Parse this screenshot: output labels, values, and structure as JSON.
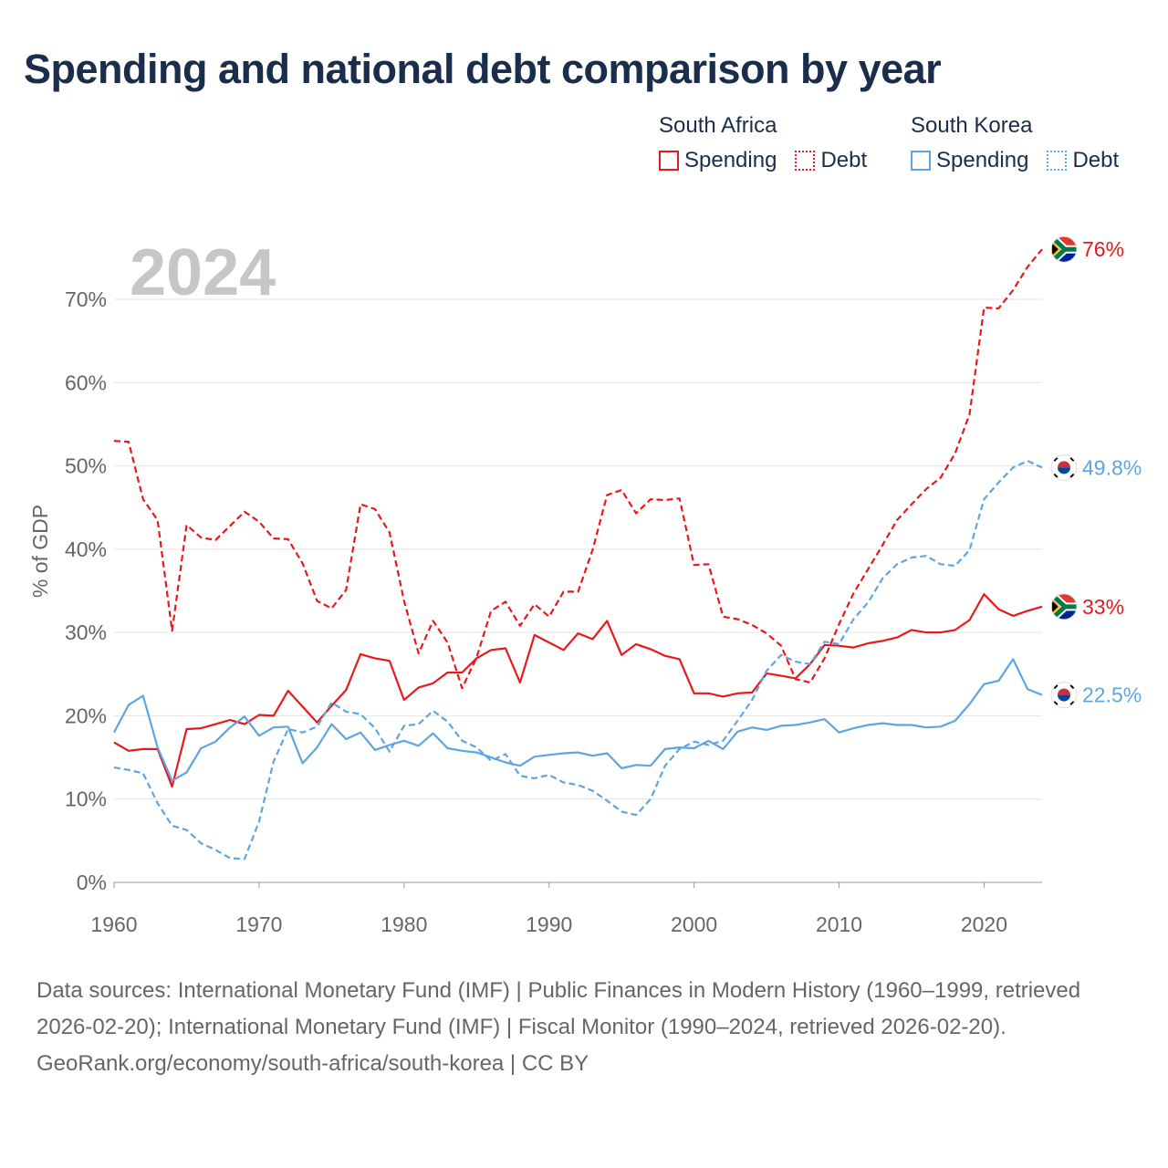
{
  "title": "Spending and national debt comparison by year",
  "year_overlay": "2024",
  "legend": {
    "groups": [
      {
        "country": "South Africa",
        "spending_label": "Spending",
        "debt_label": "Debt",
        "color": "#e8191c"
      },
      {
        "country": "South Korea",
        "spending_label": "Spending",
        "debt_label": "Debt",
        "color": "#5fa5e0"
      }
    ]
  },
  "footer": {
    "sources": "Data sources: International Monetary Fund (IMF) | Public Finances in Modern History (1960–1999, retrieved 2026-02-20); International Monetary Fund (IMF) | Fiscal Monitor (1990–2024, retrieved 2026-02-20).",
    "credit": "GeoRank.org/economy/south-africa/south-korea | CC BY"
  },
  "chart_data": {
    "type": "line",
    "title": "Spending and national debt comparison by year",
    "xlabel": "",
    "ylabel": "% of GDP",
    "xlim": [
      1960,
      2024
    ],
    "ylim": [
      0,
      76
    ],
    "x_ticks": [
      1960,
      1970,
      1980,
      1990,
      2000,
      2010,
      2020
    ],
    "y_ticks": [
      0,
      10,
      20,
      30,
      40,
      50,
      60,
      70
    ],
    "y_tick_labels": [
      "0%",
      "10%",
      "20%",
      "30%",
      "40%",
      "50%",
      "60%",
      "70%"
    ],
    "grid": true,
    "legend_position": "top-right",
    "x": [
      1960,
      1961,
      1962,
      1963,
      1964,
      1965,
      1966,
      1967,
      1968,
      1969,
      1970,
      1971,
      1972,
      1973,
      1974,
      1975,
      1976,
      1977,
      1978,
      1979,
      1980,
      1981,
      1982,
      1983,
      1984,
      1985,
      1986,
      1987,
      1988,
      1989,
      1990,
      1991,
      1992,
      1993,
      1994,
      1995,
      1996,
      1997,
      1998,
      1999,
      2000,
      2001,
      2002,
      2003,
      2004,
      2005,
      2006,
      2007,
      2008,
      2009,
      2010,
      2011,
      2012,
      2013,
      2014,
      2015,
      2016,
      2017,
      2018,
      2019,
      2020,
      2021,
      2022,
      2023,
      2024
    ],
    "series": [
      {
        "name": "South Africa Spending",
        "country": "South Africa",
        "measure": "Spending",
        "color": "#e8191c",
        "dash": "solid",
        "end_label": "33%",
        "values": [
          16.8,
          15.8,
          16.0,
          16.0,
          11.5,
          18.4,
          18.5,
          19.0,
          19.5,
          19.0,
          20.1,
          20.0,
          23.0,
          21.1,
          19.2,
          21.2,
          23.1,
          27.4,
          26.9,
          26.6,
          21.9,
          23.4,
          23.9,
          25.2,
          25.2,
          26.9,
          27.9,
          28.1,
          24.0,
          29.7,
          28.8,
          27.9,
          29.9,
          29.2,
          31.4,
          27.3,
          28.6,
          28.0,
          27.2,
          26.8,
          22.7,
          22.7,
          22.3,
          22.7,
          22.8,
          25.1,
          24.8,
          24.5,
          26.2,
          28.5,
          28.4,
          28.2,
          28.7,
          29.0,
          29.4,
          30.3,
          30.0,
          30.0,
          30.3,
          31.5,
          34.6,
          32.8,
          32.0,
          32.6,
          33.1
        ]
      },
      {
        "name": "South Africa Debt",
        "country": "South Africa",
        "measure": "Debt",
        "color": "#e8191c",
        "dash": "dashed",
        "end_label": "76%",
        "values": [
          53.0,
          52.9,
          46.0,
          43.5,
          30.2,
          42.9,
          41.4,
          41.1,
          42.8,
          44.5,
          43.3,
          41.3,
          41.2,
          38.3,
          33.8,
          32.9,
          35.1,
          45.4,
          44.8,
          42.0,
          33.8,
          27.5,
          31.4,
          28.8,
          23.3,
          27.0,
          32.6,
          33.7,
          30.8,
          33.4,
          31.9,
          34.9,
          34.9,
          39.9,
          46.5,
          47.1,
          44.3,
          46.0,
          45.9,
          46.1,
          38.1,
          38.2,
          31.9,
          31.6,
          30.9,
          29.9,
          28.4,
          24.4,
          24.0,
          26.9,
          31.0,
          34.7,
          37.6,
          40.5,
          43.5,
          45.4,
          47.2,
          48.6,
          51.5,
          56.2,
          69.0,
          68.9,
          71.1,
          73.9,
          76.0
        ]
      },
      {
        "name": "South Korea Spending",
        "country": "South Korea",
        "measure": "Spending",
        "color": "#5fa5e0",
        "dash": "solid",
        "end_label": "22.5%",
        "values": [
          18.0,
          21.3,
          22.4,
          16.2,
          12.2,
          13.2,
          16.1,
          16.9,
          18.6,
          19.9,
          17.6,
          18.6,
          18.7,
          14.3,
          16.2,
          19.0,
          17.2,
          18.0,
          15.9,
          16.5,
          17.0,
          16.4,
          17.9,
          16.1,
          15.8,
          15.6,
          15.0,
          14.4,
          14.0,
          15.1,
          15.3,
          15.5,
          15.6,
          15.2,
          15.5,
          13.7,
          14.1,
          14.0,
          16.0,
          16.2,
          16.1,
          17.0,
          16.0,
          18.1,
          18.6,
          18.3,
          18.8,
          18.9,
          19.2,
          19.6,
          18.0,
          18.5,
          18.9,
          19.1,
          18.9,
          18.9,
          18.6,
          18.7,
          19.4,
          21.4,
          23.8,
          24.2,
          26.8,
          23.2,
          22.5
        ]
      },
      {
        "name": "South Korea Debt",
        "country": "South Korea",
        "measure": "Debt",
        "color": "#5fa5e0",
        "dash": "dashed",
        "end_label": "49.8%",
        "values": [
          13.8,
          13.5,
          13.1,
          9.5,
          6.8,
          6.3,
          4.7,
          3.9,
          2.9,
          2.8,
          7.3,
          14.5,
          18.4,
          18.0,
          18.7,
          21.6,
          20.5,
          20.2,
          18.5,
          15.7,
          18.8,
          19.0,
          20.6,
          19.3,
          17.0,
          16.2,
          14.6,
          15.4,
          12.8,
          12.5,
          12.9,
          12.0,
          11.7,
          11.0,
          9.8,
          8.5,
          8.1,
          10.0,
          14.0,
          16.0,
          16.9,
          16.5,
          17.0,
          19.4,
          21.9,
          25.4,
          27.3,
          26.5,
          26.2,
          28.9,
          28.6,
          31.6,
          33.6,
          36.5,
          38.2,
          39.0,
          39.2,
          38.2,
          38.0,
          39.9,
          46.0,
          48.0,
          49.8,
          50.6,
          49.8
        ]
      }
    ]
  }
}
